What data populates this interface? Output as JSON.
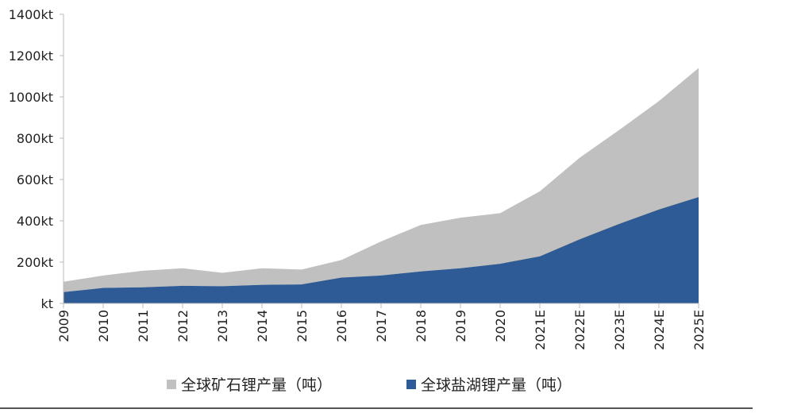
{
  "chart_data": {
    "type": "area",
    "stacked": true,
    "categories": [
      "2009",
      "2010",
      "2011",
      "2012",
      "2013",
      "2014",
      "2015",
      "2016",
      "2017",
      "2018",
      "2019",
      "2020",
      "2021E",
      "2022E",
      "2023E",
      "2024E",
      "2025E"
    ],
    "y_tick_labels": [
      "kt",
      "200kt",
      "400kt",
      "600kt",
      "800kt",
      "1000kt",
      "1200kt",
      "1400kt"
    ],
    "ylim": [
      0,
      1400
    ],
    "grid": false,
    "legend_position": "bottom",
    "series": [
      {
        "name": "全球盐湖锂产量（吨）",
        "color": "#2e5b96",
        "values": [
          55,
          75,
          78,
          85,
          83,
          90,
          92,
          125,
          135,
          155,
          170,
          192,
          228,
          310,
          385,
          455,
          515
        ]
      },
      {
        "name": "全球矿石锂产量（吨）",
        "color": "#c0c0c0",
        "values": [
          50,
          60,
          80,
          85,
          65,
          80,
          72,
          85,
          165,
          225,
          245,
          245,
          315,
          395,
          455,
          525,
          625
        ]
      }
    ]
  }
}
